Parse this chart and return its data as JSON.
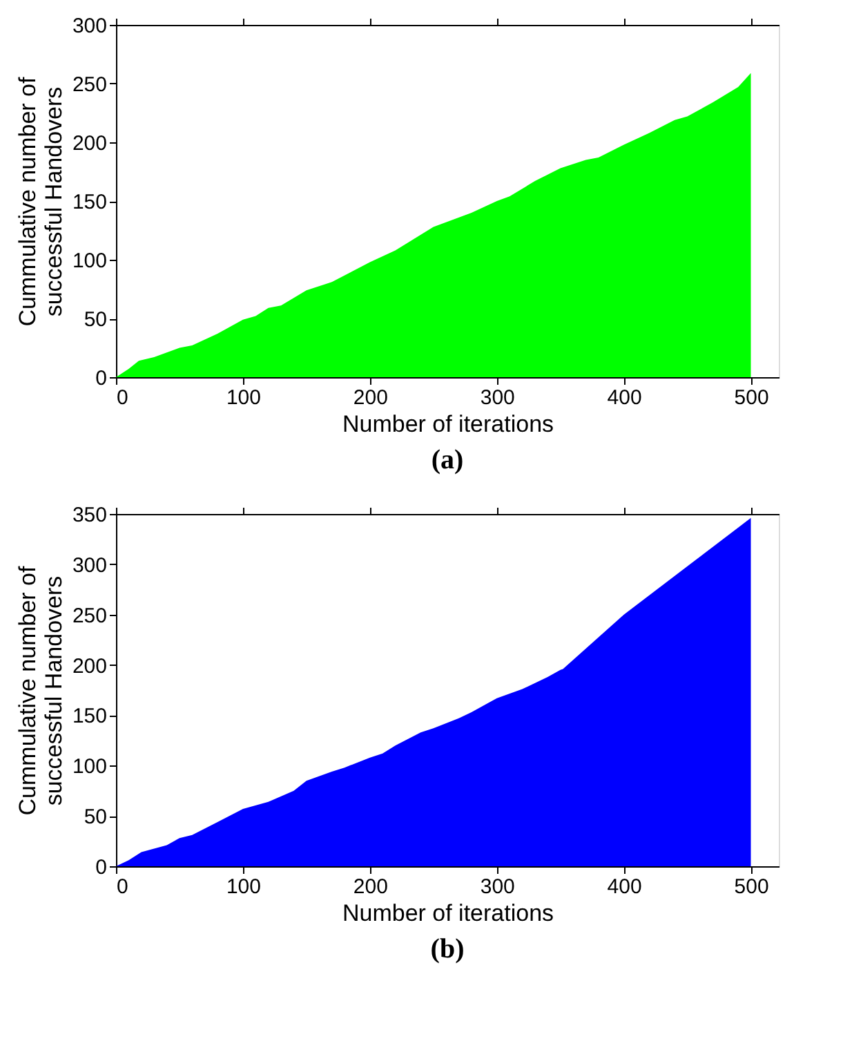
{
  "chart_data": [
    {
      "type": "area",
      "title": "(a)",
      "xlabel": "Number of iterations",
      "ylabel": "Cummulative number of successful Handovers",
      "xlim": [
        0,
        522
      ],
      "ylim": [
        0,
        300
      ],
      "xticks": [
        0,
        100,
        200,
        300,
        400,
        500
      ],
      "yticks": [
        0,
        50,
        100,
        150,
        200,
        250,
        300
      ],
      "grid": false,
      "series": [
        {
          "color": "#00ff00",
          "x": [
            0,
            10,
            18,
            30,
            50,
            60,
            80,
            100,
            110,
            120,
            130,
            150,
            170,
            200,
            220,
            250,
            280,
            300,
            310,
            330,
            350,
            370,
            380,
            400,
            420,
            440,
            450,
            470,
            490,
            500
          ],
          "values": [
            0,
            7,
            14,
            17,
            25,
            27,
            37,
            49,
            52,
            59,
            61,
            74,
            81,
            98,
            108,
            128,
            140,
            150,
            154,
            167,
            178,
            185,
            187,
            198,
            208,
            219,
            222,
            234,
            247,
            259
          ]
        }
      ]
    },
    {
      "type": "area",
      "title": "(b)",
      "xlabel": "Number of iterations",
      "ylabel": "Cummulative number of successful Handovers",
      "xlim": [
        0,
        522
      ],
      "ylim": [
        0,
        350
      ],
      "xticks": [
        0,
        100,
        200,
        300,
        400,
        500
      ],
      "yticks": [
        0,
        50,
        100,
        150,
        200,
        250,
        300,
        350
      ],
      "grid": false,
      "series": [
        {
          "color": "#0000ff",
          "x": [
            0,
            10,
            20,
            40,
            50,
            60,
            80,
            100,
            120,
            140,
            150,
            170,
            180,
            200,
            210,
            220,
            240,
            250,
            270,
            280,
            300,
            320,
            340,
            350,
            352,
            400,
            450,
            500
          ],
          "values": [
            0,
            6,
            14,
            21,
            28,
            31,
            44,
            57,
            64,
            75,
            85,
            94,
            98,
            108,
            112,
            120,
            133,
            137,
            147,
            153,
            167,
            176,
            188,
            195,
            196,
            250,
            298,
            346
          ]
        }
      ]
    }
  ]
}
